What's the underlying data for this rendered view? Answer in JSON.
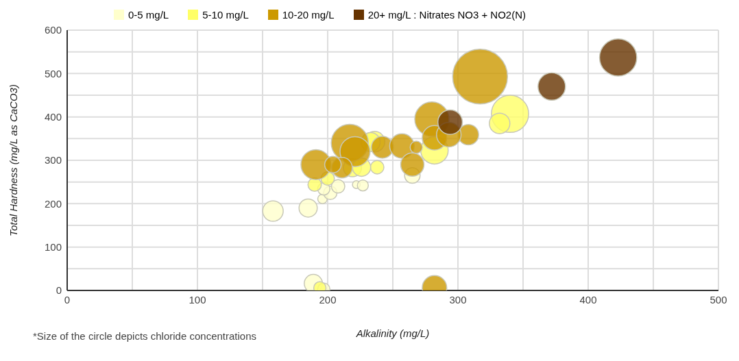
{
  "chart_data": {
    "type": "bubble",
    "xlabel": "Alkalinity (mg/L)",
    "ylabel": "Total Hardness (mg/L as CaCO3)",
    "annotations": [
      "*Size of the circle depicts chloride concentrations"
    ],
    "xlim": [
      0,
      500
    ],
    "xticks": [
      0,
      {
        "value": 50,
        "label": null
      },
      100,
      {
        "value": 150,
        "label": null
      },
      200,
      {
        "value": 250,
        "label": null
      },
      300,
      {
        "value": 350,
        "label": null
      },
      400,
      {
        "value": 450,
        "label": null
      },
      500
    ],
    "ylim": [
      0,
      600
    ],
    "yticks": [
      0,
      {
        "value": 50,
        "label": null
      },
      100,
      {
        "value": 150,
        "label": null
      },
      200,
      {
        "value": 250,
        "label": null
      },
      300,
      {
        "value": 350,
        "label": null
      },
      400,
      {
        "value": 450,
        "label": null
      },
      500,
      {
        "value": 550,
        "label": null
      },
      600
    ],
    "grid": true,
    "legend": "top",
    "marker": "circle",
    "series": [
      {
        "name": "0-5 mg/L",
        "color": "#ffffcc",
        "x": [
          158,
          185,
          196,
          202,
          208,
          197,
          222,
          227,
          265,
          189,
          197
        ],
        "values": [
          183,
          190,
          211,
          225,
          240,
          234,
          244,
          242,
          265,
          16,
          3
        ],
        "sizes": [
          0.14,
          0.11,
          0.03,
          0.06,
          0.06,
          0.05,
          0.02,
          0.04,
          0.08,
          0.11,
          0.05
        ]
      },
      {
        "name": "5-10 mg/L",
        "color": "#ffff66",
        "x": [
          194,
          200,
          190,
          219,
          236,
          238,
          226,
          340,
          332,
          282,
          233
        ],
        "values": [
          6,
          258,
          244,
          283,
          343,
          284,
          284,
          407,
          385,
          323,
          342
        ],
        "sizes": [
          0.05,
          0.06,
          0.06,
          0.11,
          0.14,
          0.06,
          0.11,
          0.46,
          0.14,
          0.25,
          0.12
        ]
      },
      {
        "name": "10-20 mg/L",
        "color": "#cc9900",
        "x": [
          317,
          282,
          280,
          191,
          217,
          221,
          211,
          204,
          242,
          257,
          265,
          268,
          282,
          308,
          293
        ],
        "values": [
          493,
          6,
          395,
          290,
          340,
          320,
          283,
          290,
          330,
          333,
          290,
          330,
          352,
          359,
          359
        ],
        "sizes": [
          1,
          0.2,
          0.39,
          0.3,
          0.46,
          0.3,
          0.14,
          0.09,
          0.16,
          0.2,
          0.18,
          0.05,
          0.2,
          0.14,
          0.2
        ]
      },
      {
        "name": "20+ mg/L : Nitrates NO3 + NO2(N)",
        "color": "#663300",
        "x": [
          423,
          372,
          294
        ],
        "values": [
          537,
          470,
          388
        ],
        "sizes": [
          0.46,
          0.25,
          0.2
        ]
      }
    ]
  }
}
